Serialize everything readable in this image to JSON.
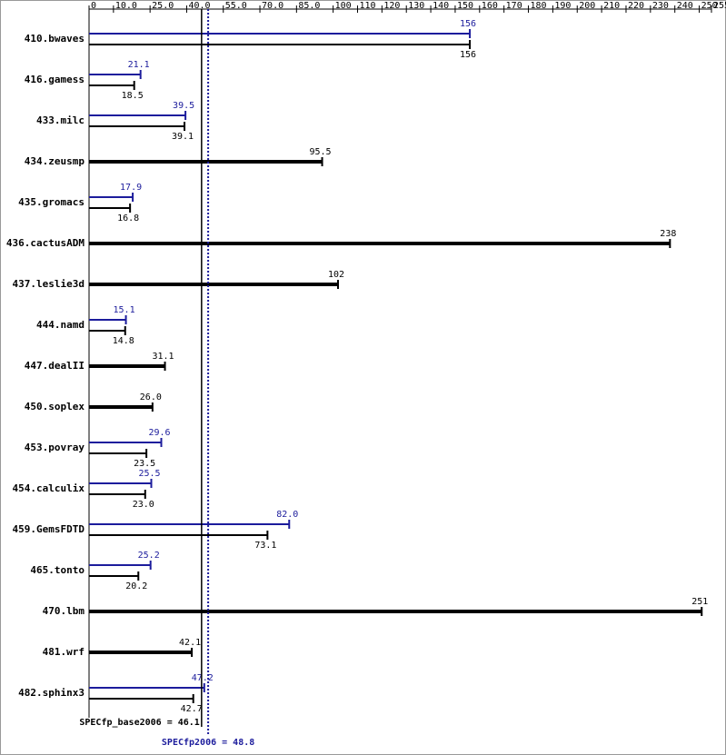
{
  "chart_data": {
    "type": "bar",
    "orientation": "horizontal",
    "categories": [
      "410.bwaves",
      "416.gamess",
      "433.milc",
      "434.zeusmp",
      "435.gromacs",
      "436.cactusADM",
      "437.leslie3d",
      "444.namd",
      "447.dealII",
      "450.soplex",
      "453.povray",
      "454.calculix",
      "459.GemsFDTD",
      "465.tonto",
      "470.lbm",
      "481.wrf",
      "482.sphinx3"
    ],
    "series": [
      {
        "color": "#000000",
        "values": [
          156,
          18.5,
          39.1,
          95.5,
          16.8,
          238,
          102,
          14.8,
          31.1,
          26.0,
          23.5,
          23.0,
          73.1,
          20.2,
          251,
          42.1,
          42.7
        ],
        "value_labels": [
          "156",
          "18.5",
          "39.1",
          "95.5",
          "16.8",
          "238",
          "102",
          "14.8",
          "31.1",
          "26.0",
          "23.5",
          "23.0",
          "73.1",
          "20.2",
          "251",
          "42.1",
          "42.7"
        ]
      },
      {
        "color": "#1c1c9c",
        "values": [
          156,
          21.1,
          39.5,
          null,
          17.9,
          null,
          null,
          15.1,
          null,
          null,
          29.6,
          25.5,
          82.0,
          25.2,
          null,
          null,
          47.2
        ],
        "value_labels": [
          "156",
          "21.1",
          "39.5",
          null,
          "17.9",
          null,
          null,
          "15.1",
          null,
          null,
          "29.6",
          "25.5",
          "82.0",
          "25.2",
          null,
          null,
          "47.2"
        ]
      }
    ],
    "xlim": [
      0,
      255
    ],
    "xticks": [
      0,
      {
        "value": 10,
        "label": "10.0"
      },
      {
        "value": 25,
        "label": "25.0"
      },
      {
        "value": 40,
        "label": "40.0"
      },
      {
        "value": 55,
        "label": "55.0"
      },
      {
        "value": 70,
        "label": "70.0"
      },
      {
        "value": 85,
        "label": "85.0"
      },
      100,
      110,
      120,
      130,
      140,
      150,
      160,
      170,
      180,
      190,
      200,
      210,
      220,
      230,
      240,
      250,
      255
    ],
    "reference_lines": [
      {
        "text": "SPECfp_base2006 = 46.1",
        "value": 46.1,
        "color": "#000000",
        "style": "solid"
      },
      {
        "text": "SPECfp2006 = 48.8",
        "value": 48.8,
        "color": "#1c1c9c",
        "style": "dotted"
      }
    ]
  }
}
